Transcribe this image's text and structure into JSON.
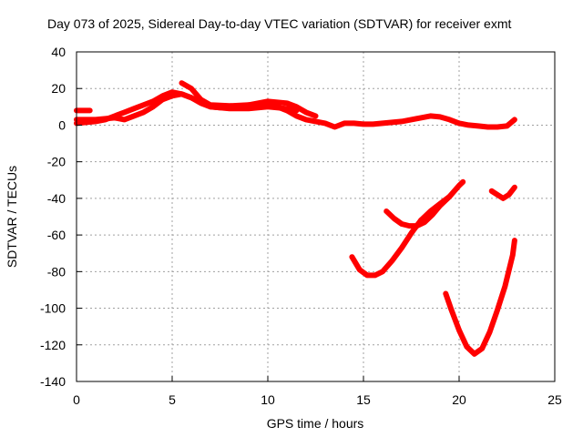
{
  "chart_data": {
    "type": "line",
    "title": "Day 073 of 2025, Sidereal Day-to-day VTEC variation (SDTVAR) for receiver exmt",
    "xlabel": "GPS time / hours",
    "ylabel": "SDTVAR / TECUs",
    "xlim": [
      0,
      25
    ],
    "ylim": [
      -140,
      40
    ],
    "xticks": [
      "0",
      "5",
      "10",
      "15",
      "20",
      "25"
    ],
    "yticks": [
      "40",
      "20",
      "0",
      "-20",
      "-40",
      "-60",
      "-80",
      "-100",
      "-120",
      "-140"
    ],
    "grid": true,
    "legend": "none",
    "color": "#ff0000",
    "series": [
      {
        "x": [
          0,
          0.5,
          1,
          1.5,
          2,
          2.5,
          3,
          3.5,
          4,
          4.5,
          5,
          5.5,
          6,
          6.5,
          7,
          7.5,
          8,
          8.5,
          9,
          9.5,
          10,
          10.5,
          11,
          11.5,
          12,
          12.5,
          13,
          13.5,
          14,
          14.5,
          15,
          15.5,
          16,
          16.5,
          17,
          17.5,
          18,
          18.5,
          19,
          19.5,
          20,
          20.5,
          21,
          21.5,
          22,
          22.5,
          22.9
        ],
        "y": [
          1,
          1.5,
          2,
          3,
          5,
          7,
          9,
          11,
          13,
          16,
          18,
          17,
          15,
          12,
          10,
          9.5,
          10,
          10.5,
          11,
          11.5,
          12,
          10,
          8,
          5,
          3,
          2,
          1,
          -1,
          1,
          1,
          0.5,
          0.5,
          1,
          1.5,
          2,
          3,
          4,
          5,
          4.5,
          3,
          1,
          0,
          -0.5,
          -1,
          -1,
          -0.5,
          3
        ]
      },
      {
        "x": [
          0,
          1,
          2,
          2.5,
          3,
          3.5,
          4,
          4.5,
          5,
          5.5,
          6,
          7,
          8,
          9,
          10,
          11,
          11.5
        ],
        "y": [
          3,
          3,
          4,
          3,
          5,
          7,
          10,
          14,
          16,
          17,
          15,
          10,
          9,
          9,
          10,
          9,
          8
        ]
      },
      {
        "x": [
          0,
          0.7
        ],
        "y": [
          8,
          8
        ]
      },
      {
        "x": [
          5.5,
          6,
          6.5,
          7,
          8,
          9,
          10,
          11,
          11.5,
          12,
          12.5
        ],
        "y": [
          23,
          20,
          14,
          11,
          10.5,
          11,
          13,
          12,
          10,
          7,
          5
        ]
      },
      {
        "x": [
          14.4,
          14.8,
          15.2,
          15.6,
          16,
          16.5,
          17,
          17.5,
          18
        ],
        "y": [
          -72,
          -79,
          -82,
          -82,
          -80,
          -74,
          -67,
          -59,
          -52
        ]
      },
      {
        "x": [
          16.2,
          16.6,
          17,
          17.4,
          17.8,
          18.2,
          18.6,
          19,
          19.5,
          20,
          20.2
        ],
        "y": [
          -47,
          -51,
          -54,
          -55,
          -55,
          -53,
          -49,
          -44,
          -39,
          -33,
          -31
        ]
      },
      {
        "x": [
          18,
          18.5,
          19,
          19.5
        ],
        "y": [
          -52,
          -47,
          -43,
          -39
        ]
      },
      {
        "x": [
          19.3,
          19.6,
          20,
          20.4,
          20.8,
          21.2,
          21.6,
          22,
          22.4,
          22.8,
          22.9
        ],
        "y": [
          -92,
          -101,
          -112,
          -121,
          -125,
          -122,
          -113,
          -101,
          -88,
          -71,
          -63
        ]
      },
      {
        "x": [
          21.7,
          22,
          22.3,
          22.6,
          22.9
        ],
        "y": [
          -36,
          -38,
          -40,
          -38,
          -34
        ]
      }
    ]
  }
}
